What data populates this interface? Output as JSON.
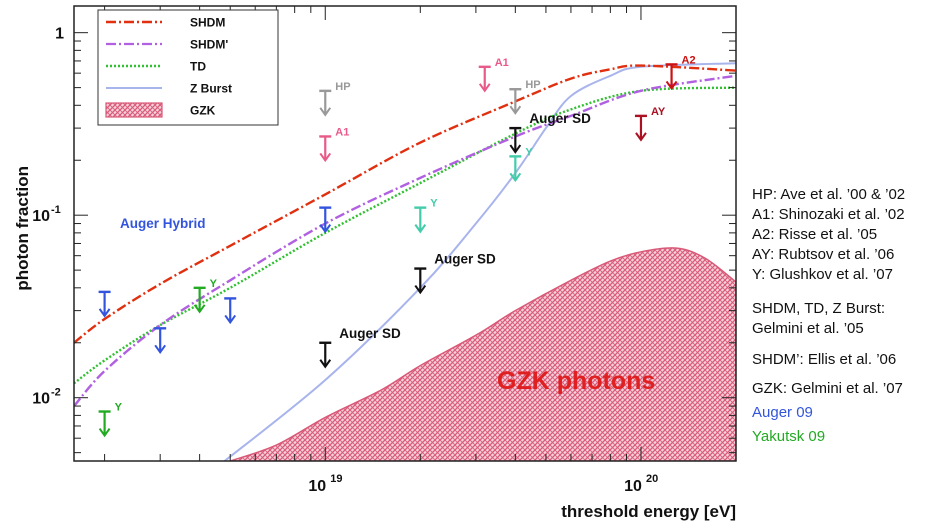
{
  "chart_data": {
    "type": "line",
    "xlabel": "threshold energy  [eV]",
    "ylabel": "photon fraction",
    "xscale": "log",
    "yscale": "log",
    "xlim": [
      1.6e+18,
      2e+20
    ],
    "ylim": [
      0.0045,
      1.4
    ],
    "x_ticks": [
      {
        "value": 1e+19,
        "label": "10",
        "exp": "19"
      },
      {
        "value": 1e+20,
        "label": "10",
        "exp": "20"
      }
    ],
    "y_ticks": [
      {
        "value": 1,
        "label": "1",
        "exp": ""
      },
      {
        "value": 0.1,
        "label": "10",
        "exp": "-1"
      },
      {
        "value": 0.01,
        "label": "10",
        "exp": "-2"
      }
    ],
    "legend": {
      "position": "top-left",
      "entries": [
        {
          "name": "SHDM",
          "color": "#e03010",
          "style": "dashdot"
        },
        {
          "name": "SHDM'",
          "color": "#b060e0",
          "style": "dashdot"
        },
        {
          "name": "TD",
          "color": "#30c030",
          "style": "dotted"
        },
        {
          "name": "Z Burst",
          "color": "#a8b4ec",
          "style": "solid"
        },
        {
          "name": "GZK",
          "color": "#d85a78",
          "style": "hatched-band"
        }
      ]
    },
    "series": [
      {
        "name": "SHDM",
        "color": "#e03010",
        "style": "dashdot",
        "x": [
          1.6e+18,
          2e+18,
          3e+18,
          5e+18,
          1e+19,
          2e+19,
          4e+19,
          6e+19,
          8e+19,
          1e+20,
          2e+20
        ],
        "y": [
          0.02,
          0.027,
          0.042,
          0.068,
          0.13,
          0.25,
          0.42,
          0.56,
          0.63,
          0.66,
          0.62
        ]
      },
      {
        "name": "SHDM'",
        "color": "#b060e0",
        "style": "dashdot",
        "x": [
          1.6e+18,
          2e+18,
          3e+18,
          5e+18,
          1e+19,
          2e+19,
          4e+19,
          6e+19,
          1e+20,
          2e+20
        ],
        "y": [
          0.009,
          0.014,
          0.025,
          0.044,
          0.09,
          0.16,
          0.27,
          0.35,
          0.48,
          0.58
        ]
      },
      {
        "name": "TD",
        "color": "#30c030",
        "style": "dotted",
        "x": [
          1.6e+18,
          2e+18,
          3e+18,
          5e+18,
          1e+19,
          2e+19,
          4e+19,
          6e+19,
          1e+20,
          2e+20
        ],
        "y": [
          0.012,
          0.016,
          0.025,
          0.04,
          0.08,
          0.15,
          0.28,
          0.38,
          0.48,
          0.5
        ]
      },
      {
        "name": "Z Burst",
        "color": "#a8b4ec",
        "style": "solid",
        "x": [
          4.8e+18,
          1e+19,
          2e+19,
          3e+19,
          4e+19,
          5e+19,
          6e+19,
          8e+19,
          1e+20,
          2e+20
        ],
        "y": [
          0.0045,
          0.0125,
          0.04,
          0.09,
          0.17,
          0.3,
          0.45,
          0.58,
          0.65,
          0.68
        ]
      }
    ],
    "gzk_band": {
      "name": "GZK",
      "label": "GZK photons",
      "color": "#d85a78",
      "x": [
        5e+18,
        7e+18,
        1e+19,
        1.5e+19,
        2e+19,
        3e+19,
        4e+19,
        6e+19,
        8e+19,
        1e+20,
        1.3e+20,
        1.6e+20,
        2e+20
      ],
      "y": [
        0.0045,
        0.0055,
        0.0078,
        0.011,
        0.015,
        0.022,
        0.03,
        0.044,
        0.056,
        0.063,
        0.066,
        0.058,
        0.043
      ]
    },
    "limits": [
      {
        "set": "Auger Hybrid",
        "color": "#3355dd",
        "x": 2e+18,
        "y": 0.038
      },
      {
        "set": "Auger Hybrid",
        "color": "#3355dd",
        "x": 3e+18,
        "y": 0.024
      },
      {
        "set": "Auger Hybrid",
        "color": "#3355dd",
        "x": 5e+18,
        "y": 0.035
      },
      {
        "set": "Auger Hybrid",
        "color": "#3355dd",
        "x": 1e+19,
        "y": 0.11
      },
      {
        "set": "Y",
        "color": "#22aa22",
        "x": 2e+18,
        "y": 0.0084,
        "label": "Y"
      },
      {
        "set": "Y",
        "color": "#22aa22",
        "x": 4e+18,
        "y": 0.04,
        "label": "Y"
      },
      {
        "set": "Y",
        "color": "#44ccaa",
        "x": 2e+19,
        "y": 0.11,
        "label": "Y"
      },
      {
        "set": "Y",
        "color": "#44ccaa",
        "x": 4e+19,
        "y": 0.21,
        "label": "Y"
      },
      {
        "set": "HP",
        "color": "#999999",
        "x": 1e+19,
        "y": 0.48,
        "label": "HP"
      },
      {
        "set": "HP",
        "color": "#999999",
        "x": 4e+19,
        "y": 0.49,
        "label": "HP"
      },
      {
        "set": "A1",
        "color": "#e85a88",
        "x": 1e+19,
        "y": 0.27,
        "label": "A1"
      },
      {
        "set": "A1",
        "color": "#e85a88",
        "x": 3.2e+19,
        "y": 0.65,
        "label": "A1"
      },
      {
        "set": "A2",
        "color": "#cc1111",
        "x": 1.25e+20,
        "y": 0.67,
        "label": "A2"
      },
      {
        "set": "AY",
        "color": "#aa1122",
        "x": 1e+20,
        "y": 0.35,
        "label": "AY"
      },
      {
        "set": "Auger SD",
        "color": "#111111",
        "x": 1e+19,
        "y": 0.02,
        "label": "Auger SD"
      },
      {
        "set": "Auger SD",
        "color": "#111111",
        "x": 2e+19,
        "y": 0.051,
        "label": "Auger SD"
      },
      {
        "set": "Auger SD",
        "color": "#111111",
        "x": 4e+19,
        "y": 0.3,
        "label": "Auger SD"
      }
    ],
    "annotations": [
      {
        "text": "Auger Hybrid",
        "color": "#3355dd"
      }
    ]
  },
  "notes": {
    "refs": [
      "HP: Ave et al. ’00 & ’02",
      "A1: Shinozaki et al. ’02",
      "A2: Risse et al. ’05",
      "AY: Rubtsov et al. ’06",
      "Y: Glushkov et al. ’07"
    ],
    "models": [
      "SHDM, TD, Z Burst:",
      "Gelmini et al. ’05",
      "SHDM’: Ellis et al. ’06",
      "GZK: Gelmini et al. ’07"
    ],
    "auger": "Auger 09",
    "yakutsk": "Yakutsk 09",
    "auger_color": "#3355dd",
    "yakutsk_color": "#22aa22"
  }
}
